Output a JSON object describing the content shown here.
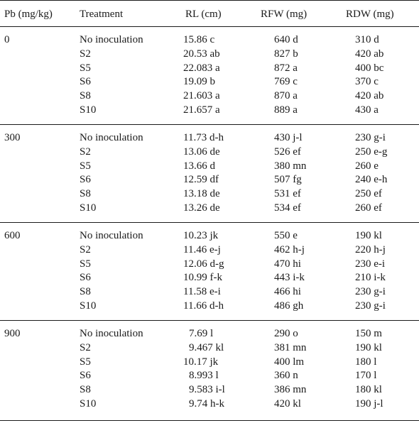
{
  "headers": {
    "pb": "Pb (mg/kg)",
    "treatment": "Treatment",
    "rl": "RL (cm)",
    "rfw": "RFW (mg)",
    "rdw": "RDW (mg)"
  },
  "groups": [
    {
      "pb": "0",
      "rows": [
        {
          "treatment": "No inoculation",
          "rl": "15.86 c",
          "rfw": "640 d",
          "rdw": "310 d"
        },
        {
          "treatment": "S2",
          "rl": "20.53 ab",
          "rfw": "827 b",
          "rdw": "420 ab"
        },
        {
          "treatment": "S5",
          "rl": "22.083 a",
          "rfw": "872 a",
          "rdw": "400 bc"
        },
        {
          "treatment": "S6",
          "rl": "19.09 b",
          "rfw": "769 c",
          "rdw": "370 c"
        },
        {
          "treatment": "S8",
          "rl": "21.603 a",
          "rfw": "870 a",
          "rdw": "420 ab"
        },
        {
          "treatment": "S10",
          "rl": "21.657 a",
          "rfw": "889 a",
          "rdw": "430 a"
        }
      ]
    },
    {
      "pb": "300",
      "rows": [
        {
          "treatment": "No inoculation",
          "rl": "11.73 d-h",
          "rfw": "430 j-l",
          "rdw": "230 g-i"
        },
        {
          "treatment": "S2",
          "rl": "13.06 de",
          "rfw": "526 ef",
          "rdw": "250 e-g"
        },
        {
          "treatment": "S5",
          "rl": "13.66 d",
          "rfw": "380 mn",
          "rdw": "260 e"
        },
        {
          "treatment": "S6",
          "rl": "12.59 df",
          "rfw": "507 fg",
          "rdw": "240 e-h"
        },
        {
          "treatment": "S8",
          "rl": "13.18 de",
          "rfw": "531 ef",
          "rdw": "250 ef"
        },
        {
          "treatment": "S10",
          "rl": "13.26 de",
          "rfw": "534 ef",
          "rdw": "260 ef"
        }
      ]
    },
    {
      "pb": "600",
      "rows": [
        {
          "treatment": "No inoculation",
          "rl": "10.23 jk",
          "rfw": "550 e",
          "rdw": "190 kl"
        },
        {
          "treatment": "S2",
          "rl": "11.46 e-j",
          "rfw": "462 h-j",
          "rdw": "220 h-j"
        },
        {
          "treatment": "S5",
          "rl": "12.06 d-g",
          "rfw": "470 hi",
          "rdw": "230 e-i"
        },
        {
          "treatment": "S6",
          "rl": "10.99 f-k",
          "rfw": "443 i-k",
          "rdw": "210 i-k"
        },
        {
          "treatment": "S8",
          "rl": "11.58 e-i",
          "rfw": "466 hi",
          "rdw": "230 g-i"
        },
        {
          "treatment": "S10",
          "rl": "11.66 d-h",
          "rfw": "486 gh",
          "rdw": "230 g-i"
        }
      ]
    },
    {
      "pb": "900",
      "rows": [
        {
          "treatment": "No inoculation",
          "rl": "7.69 l",
          "rfw": "290 o",
          "rdw": "150 m"
        },
        {
          "treatment": "S2",
          "rl": "9.467 kl",
          "rfw": "381 mn",
          "rdw": "190 kl"
        },
        {
          "treatment": "S5",
          "rl": "10.17 jk",
          "rfw": "400 lm",
          "rdw": "180 l"
        },
        {
          "treatment": "S6",
          "rl": "8.993 l",
          "rfw": "360 n",
          "rdw": "170 l"
        },
        {
          "treatment": "S8",
          "rl": "9.583 i-l",
          "rfw": "386 mn",
          "rdw": "180 kl"
        },
        {
          "treatment": "S10",
          "rl": "9.74 h-k",
          "rfw": "420 kl",
          "rdw": "190 j-l"
        }
      ]
    }
  ]
}
